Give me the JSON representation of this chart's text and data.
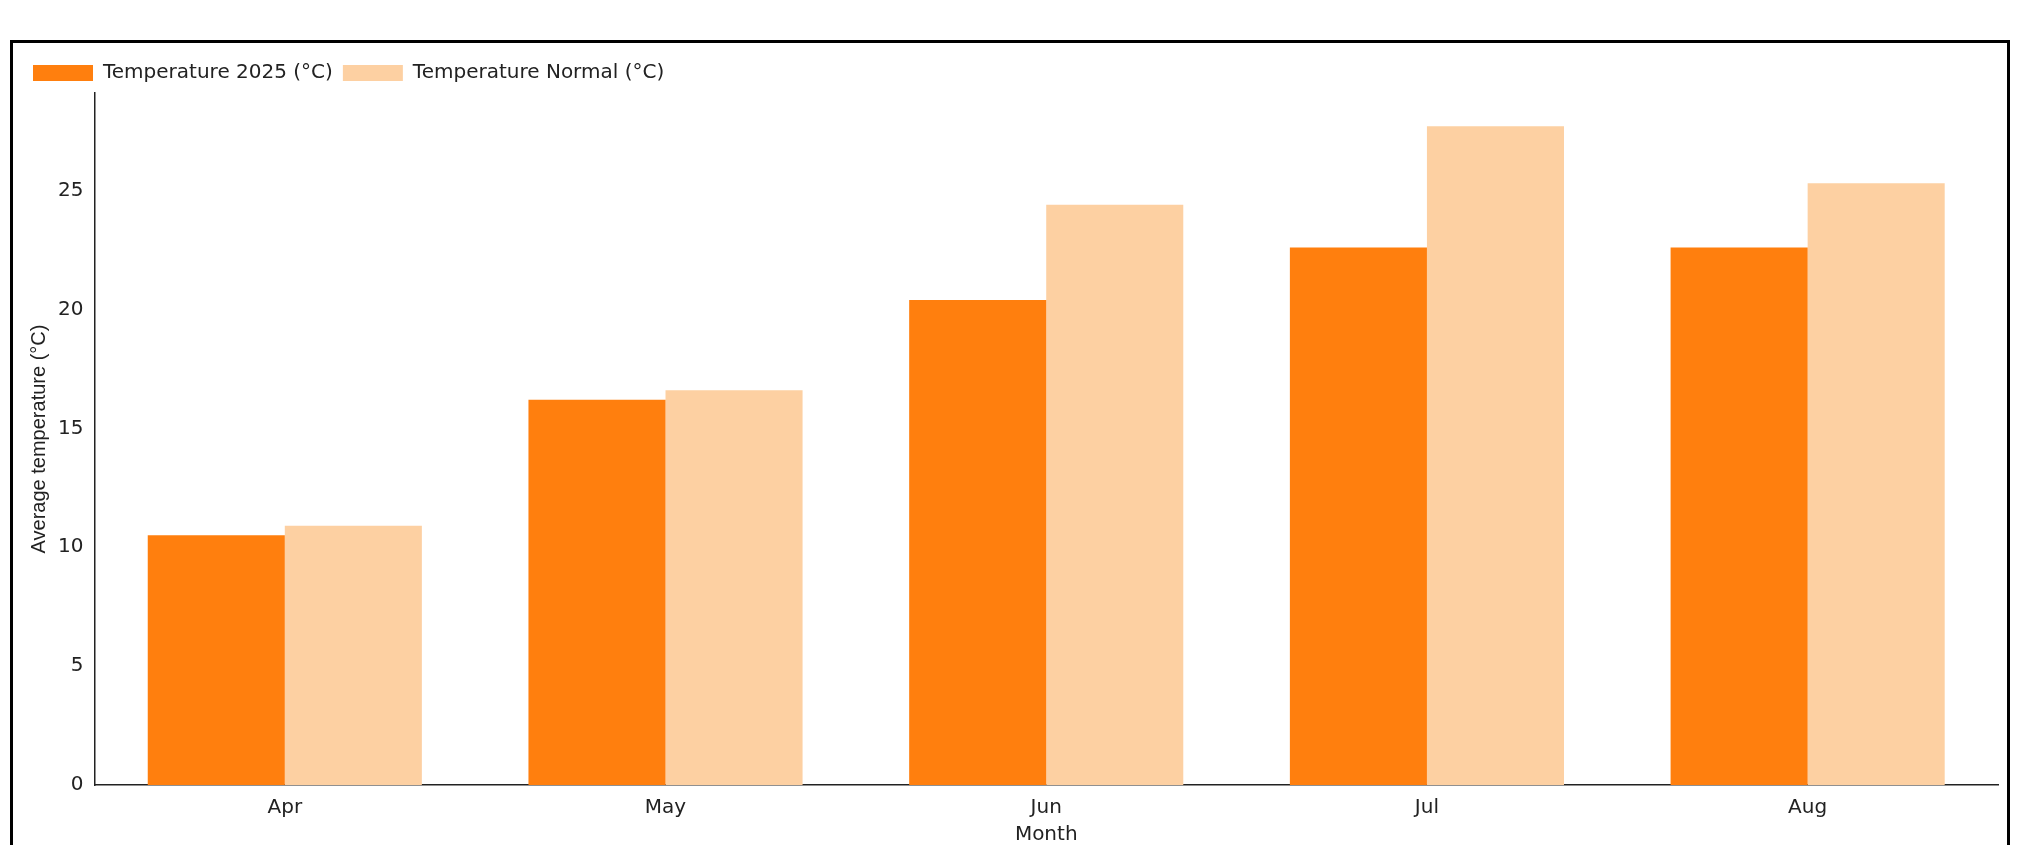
{
  "chart_data": {
    "type": "bar",
    "xlabel": "Month",
    "ylabel": "Average temperature (°C)",
    "categories": [
      "Apr",
      "May",
      "Jun",
      "Jul",
      "Aug"
    ],
    "series": [
      {
        "name": "Temperature 2025 (°C)",
        "color": "#ff7f0e",
        "values": [
          10.5,
          16.2,
          20.4,
          22.6,
          22.6
        ]
      },
      {
        "name": "Temperature Normal (°C)",
        "color": "#fdd0a2",
        "values": [
          10.9,
          16.6,
          24.4,
          27.7,
          25.3
        ]
      }
    ],
    "ylim": [
      0,
      29.1
    ],
    "yticks": [
      0,
      5,
      10,
      15,
      20,
      25
    ],
    "grid": false,
    "legend": "top left"
  }
}
